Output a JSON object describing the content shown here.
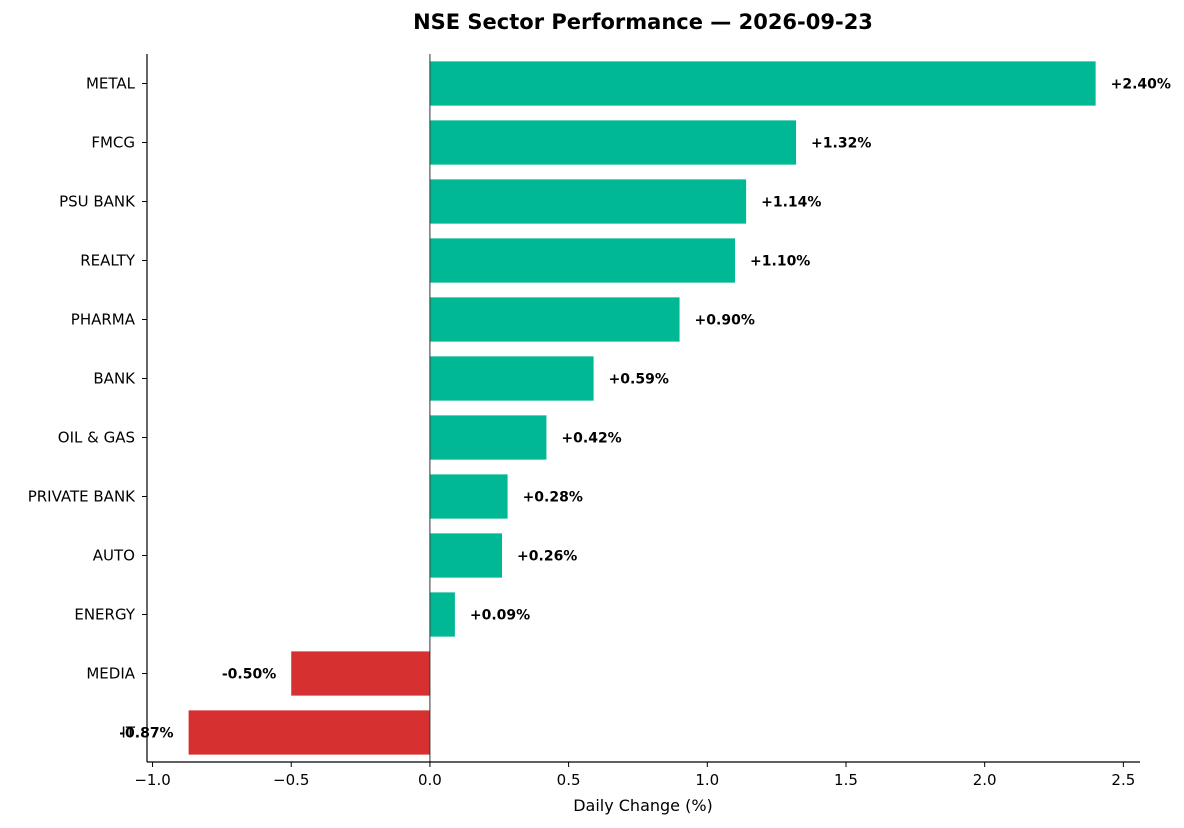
{
  "chart_data": {
    "type": "bar",
    "orientation": "horizontal",
    "title": "NSE Sector Performance — 2026-09-23",
    "xlabel": "Daily Change (%)",
    "ylabel": "",
    "xlim": [
      -1.02,
      2.56
    ],
    "xticks": [
      -1.0,
      -0.5,
      0.0,
      0.5,
      1.0,
      1.5,
      2.0,
      2.5
    ],
    "xtick_labels": [
      "−1.0",
      "−0.5",
      "0.0",
      "0.5",
      "1.0",
      "1.5",
      "2.0",
      "2.5"
    ],
    "categories": [
      "METAL",
      "FMCG",
      "PSU BANK",
      "REALTY",
      "PHARMA",
      "BANK",
      "OIL & GAS",
      "PRIVATE BANK",
      "AUTO",
      "ENERGY",
      "MEDIA",
      "IT"
    ],
    "values": [
      2.4,
      1.32,
      1.14,
      1.1,
      0.9,
      0.59,
      0.42,
      0.28,
      0.26,
      0.09,
      -0.5,
      -0.87
    ],
    "value_labels": [
      "+2.40%",
      "+1.32%",
      "+1.14%",
      "+1.10%",
      "+0.90%",
      "+0.59%",
      "+0.42%",
      "+0.28%",
      "+0.26%",
      "+0.09%",
      "-0.50%",
      "-0.87%"
    ],
    "colors": {
      "positive": "#00b894",
      "negative": "#d63031"
    },
    "grid": false,
    "legend": "none"
  }
}
